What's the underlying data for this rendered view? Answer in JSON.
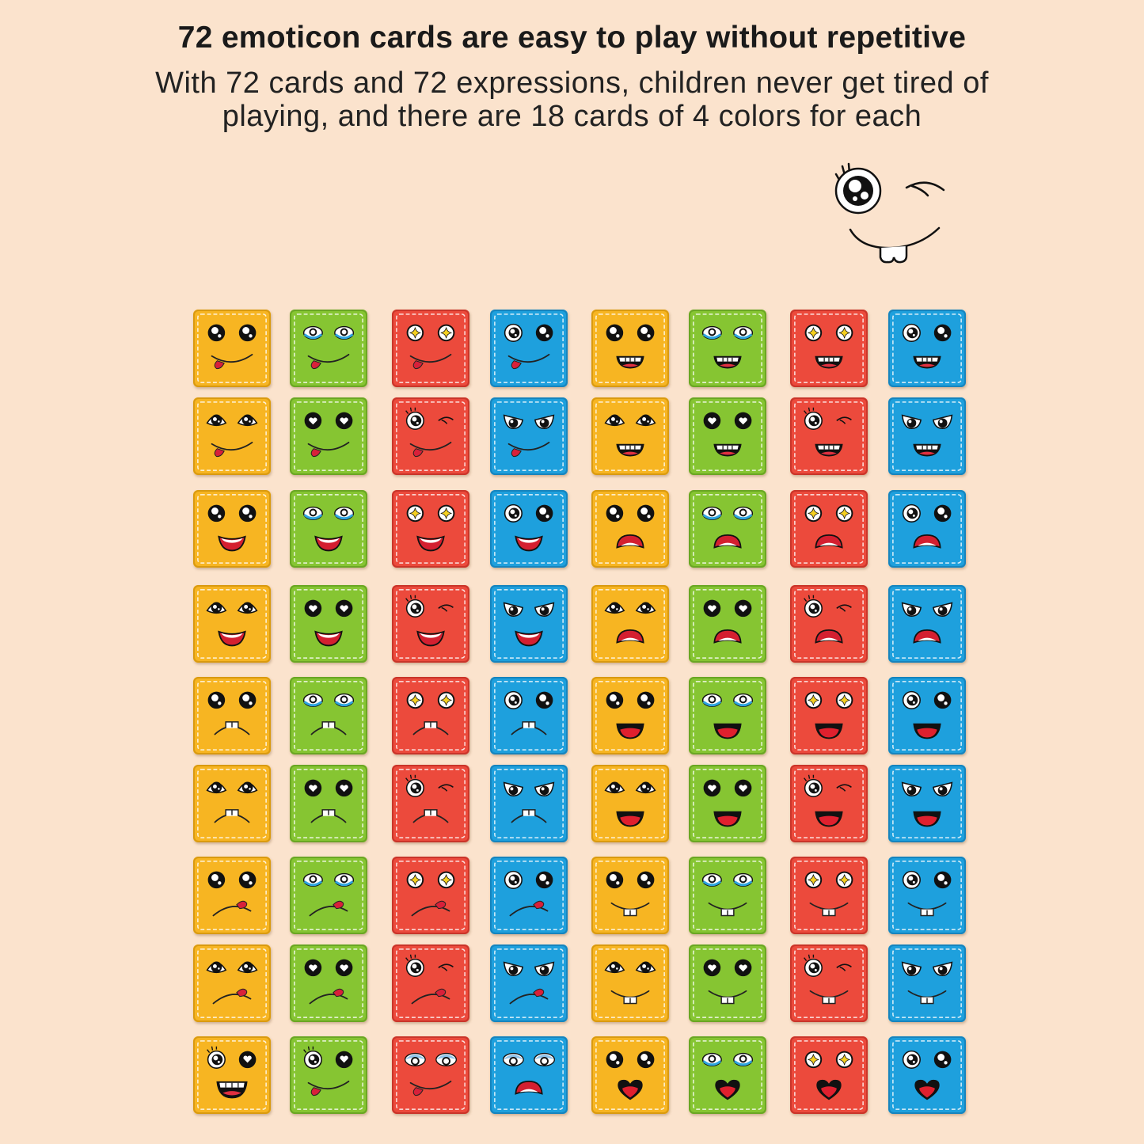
{
  "header": {
    "title": "72 emoticon cards are easy to play without repetitive",
    "subtitle_line1": "With 72 cards and 72 expressions, children never get tired of",
    "subtitle_line2": "playing, and there are 18 cards of 4 colors for each"
  },
  "decoration": {
    "icon": "winking-face-icon"
  },
  "colors": {
    "background": "#fbe3cd",
    "yellow": "#f7b522",
    "green": "#86c532",
    "red": "#ec4a3c",
    "blue": "#1ea0dd"
  },
  "column_colors": [
    "yellow",
    "green",
    "red",
    "blue",
    "yellow",
    "green",
    "red",
    "blue"
  ],
  "card_rows": [
    {
      "eyes": [
        "dots",
        "teary",
        "star",
        "odd",
        "dots",
        "teary",
        "star",
        "odd"
      ],
      "mouths": [
        "tongue",
        "tongue",
        "tongue",
        "tongue",
        "grin",
        "grin",
        "grin",
        "grin"
      ]
    },
    {
      "eyes": [
        "lidded",
        "heart",
        "wink",
        "angry",
        "lidded",
        "heart",
        "wink",
        "angry"
      ],
      "mouths": [
        "tongue",
        "tongue",
        "tongue",
        "tongue",
        "grin",
        "grin",
        "grin",
        "grin"
      ]
    },
    {
      "eyes": [
        "dots",
        "teary",
        "star",
        "odd",
        "dots",
        "teary",
        "star",
        "odd"
      ],
      "mouths": [
        "open-smile",
        "open-smile",
        "open-smile",
        "open-smile",
        "sad-open",
        "sad-open",
        "sad-open",
        "sad-open"
      ]
    },
    {
      "eyes": [
        "lidded",
        "heart",
        "wink",
        "angry",
        "lidded",
        "heart",
        "wink",
        "angry"
      ],
      "mouths": [
        "open-smile",
        "open-smile",
        "open-smile",
        "open-smile",
        "sad-open",
        "sad-open",
        "sad-open",
        "sad-open"
      ]
    },
    {
      "eyes": [
        "dots",
        "teary",
        "star",
        "odd",
        "dots",
        "teary",
        "star",
        "odd"
      ],
      "mouths": [
        "frown-teeth",
        "frown-teeth",
        "frown-teeth",
        "frown-teeth",
        "big-open",
        "big-open",
        "big-open",
        "big-open"
      ]
    },
    {
      "eyes": [
        "lidded",
        "heart",
        "wink",
        "angry",
        "lidded",
        "heart",
        "wink",
        "angry"
      ],
      "mouths": [
        "frown-teeth",
        "frown-teeth",
        "frown-teeth",
        "frown-teeth",
        "big-open",
        "big-open",
        "big-open",
        "big-open"
      ]
    },
    {
      "eyes": [
        "dots",
        "teary",
        "star",
        "odd",
        "dots",
        "teary",
        "star",
        "odd"
      ],
      "mouths": [
        "tongue-frown",
        "tongue-frown",
        "tongue-frown",
        "tongue-frown",
        "buck-smile",
        "buck-smile",
        "buck-smile",
        "buck-smile"
      ]
    },
    {
      "eyes": [
        "lidded",
        "heart",
        "wink",
        "angry",
        "lidded",
        "heart",
        "wink",
        "angry"
      ],
      "mouths": [
        "tongue-frown",
        "tongue-frown",
        "tongue-frown",
        "tongue-frown",
        "buck-smile",
        "buck-smile",
        "buck-smile",
        "buck-smile"
      ]
    },
    {
      "eyes": [
        "round-heart",
        "round-heart",
        "sleepy",
        "sleepy",
        "dots",
        "teary",
        "star",
        "odd"
      ],
      "mouths": [
        "toothy-open",
        "tongue",
        "tongue",
        "sad-open",
        "heart",
        "heart",
        "heart",
        "heart"
      ]
    }
  ]
}
